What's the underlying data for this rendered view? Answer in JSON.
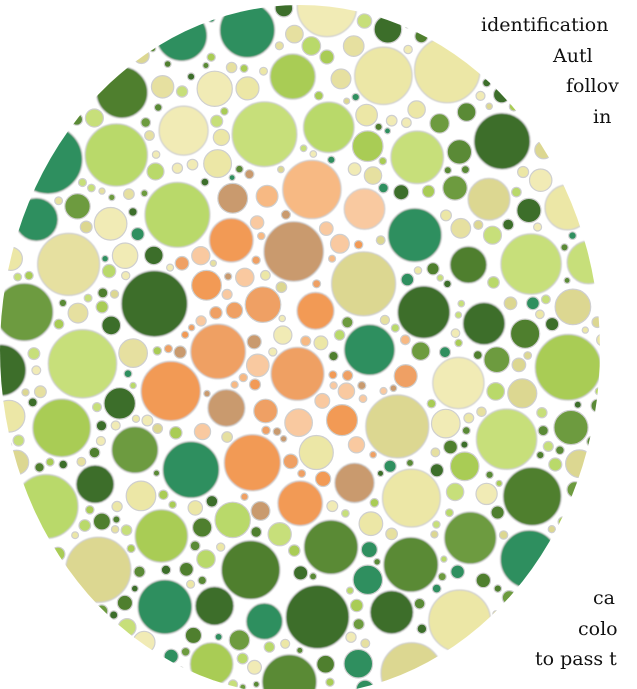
{
  "image": {
    "description_kind": "color-vision test plate cropped at the right edge, overlapping an article text column",
    "colors": {
      "background": "#ffffff",
      "dot_stroke": "#cfcfcf",
      "greens": [
        "#5a8a36",
        "#4f7f2e",
        "#6d9b3f",
        "#a9cc55",
        "#b9d96a",
        "#c7df7a",
        "#2f8f5f",
        "#3c6e2a"
      ],
      "yellows": [
        "#ece7a6",
        "#e6e0a0",
        "#f1ebb5",
        "#dcd791"
      ],
      "oranges": [
        "#f29a55",
        "#f7b983",
        "#f9c9a0",
        "#efa064",
        "#c99a6e"
      ]
    }
  },
  "text_fragments": [
    {
      "key": "line_1",
      "text": "identification"
    },
    {
      "key": "line_2",
      "text": "Autl"
    },
    {
      "key": "line_3",
      "text": "follov"
    },
    {
      "key": "line_4",
      "text": "in"
    },
    {
      "key": "line_5",
      "text": "ca"
    },
    {
      "key": "line_6",
      "text": "colo"
    },
    {
      "key": "line_7",
      "text": "to pass t"
    }
  ]
}
